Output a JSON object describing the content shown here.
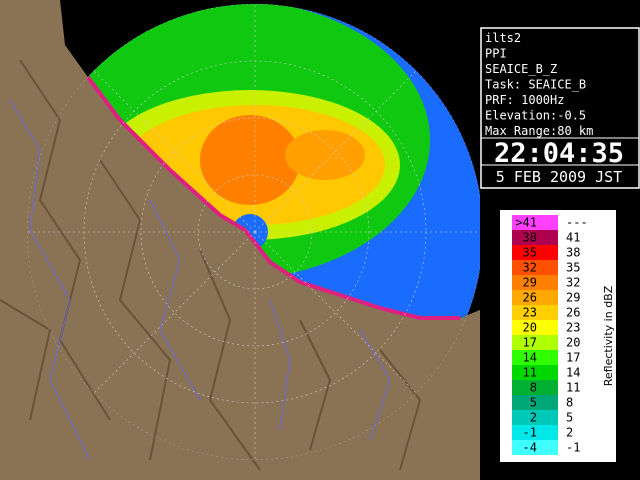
{
  "info": {
    "lines": [
      "ilts2",
      "PPI",
      "SEAICE_B_Z",
      "Task: SEAICE_B",
      "PRF: 1000Hz",
      "Elevation:-0.5",
      "Max Range:80 km"
    ],
    "time": "22:04:35",
    "date": "5 FEB 2009 JST"
  },
  "legend": {
    "title": "Reflectivity in dBZ",
    "rows": [
      {
        "low": ">41",
        "high": "---",
        "color": "#ff40ff"
      },
      {
        "low": "38",
        "high": "41",
        "color": "#b00050"
      },
      {
        "low": "35",
        "high": "38",
        "color": "#ff0000"
      },
      {
        "low": "32",
        "high": "35",
        "color": "#ff5000"
      },
      {
        "low": "29",
        "high": "32",
        "color": "#ff8000"
      },
      {
        "low": "26",
        "high": "29",
        "color": "#ffa800"
      },
      {
        "low": "23",
        "high": "26",
        "color": "#ffd000"
      },
      {
        "low": "20",
        "high": "23",
        "color": "#ffff00"
      },
      {
        "low": "17",
        "high": "20",
        "color": "#b0ff00"
      },
      {
        "low": "14",
        "high": "17",
        "color": "#30ff00"
      },
      {
        "low": "11",
        "high": "14",
        "color": "#00d800"
      },
      {
        "low": "8",
        "high": "11",
        "color": "#00b030"
      },
      {
        "low": "5",
        "high": "8",
        "color": "#00a878"
      },
      {
        "low": "2",
        "high": "5",
        "color": "#00c8b8"
      },
      {
        "low": "-1",
        "high": "2",
        "color": "#00e8e8"
      },
      {
        "low": "-4",
        "high": "-1",
        "color": "#40ffff"
      }
    ]
  }
}
